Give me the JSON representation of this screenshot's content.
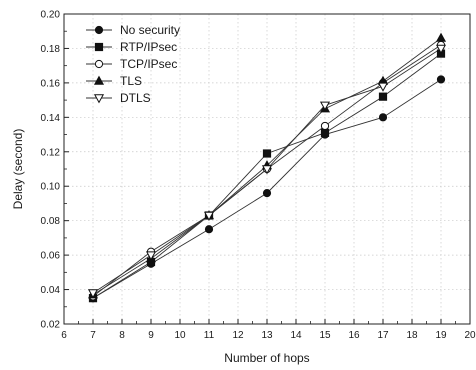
{
  "chart_data": {
    "type": "line",
    "title": "",
    "xlabel": "Number of hops",
    "ylabel": "Delay (second)",
    "xlim": [
      6,
      20
    ],
    "ylim": [
      0.02,
      0.2
    ],
    "xticks": [
      "6",
      "7",
      "8",
      "9",
      "10",
      "11",
      "12",
      "13",
      "14",
      "15",
      "16",
      "17",
      "18",
      "19",
      "20"
    ],
    "yticks": [
      "0.02",
      "0.04",
      "0.06",
      "0.08",
      "0.10",
      "0.12",
      "0.14",
      "0.16",
      "0.18",
      "0.20"
    ],
    "grid": true,
    "legend_position": "top-left",
    "x": [
      7,
      9,
      11,
      13,
      15,
      17,
      19
    ],
    "series": [
      {
        "name": "No security",
        "marker": "circle-filled",
        "values": [
          0.035,
          0.055,
          0.075,
          0.096,
          0.13,
          0.14,
          0.162
        ]
      },
      {
        "name": "RTP/IPsec",
        "marker": "square-filled",
        "values": [
          0.035,
          0.056,
          0.083,
          0.119,
          0.131,
          0.152,
          0.177
        ]
      },
      {
        "name": "TCP/IPsec",
        "marker": "circle-open",
        "values": [
          0.036,
          0.062,
          0.083,
          0.11,
          0.135,
          0.16,
          0.182
        ]
      },
      {
        "name": "TLS",
        "marker": "triangle-filled",
        "values": [
          0.037,
          0.058,
          0.083,
          0.112,
          0.145,
          0.161,
          0.186
        ]
      },
      {
        "name": "DTLS",
        "marker": "triangle-down-open",
        "values": [
          0.038,
          0.06,
          0.083,
          0.11,
          0.147,
          0.158,
          0.18
        ]
      }
    ]
  }
}
